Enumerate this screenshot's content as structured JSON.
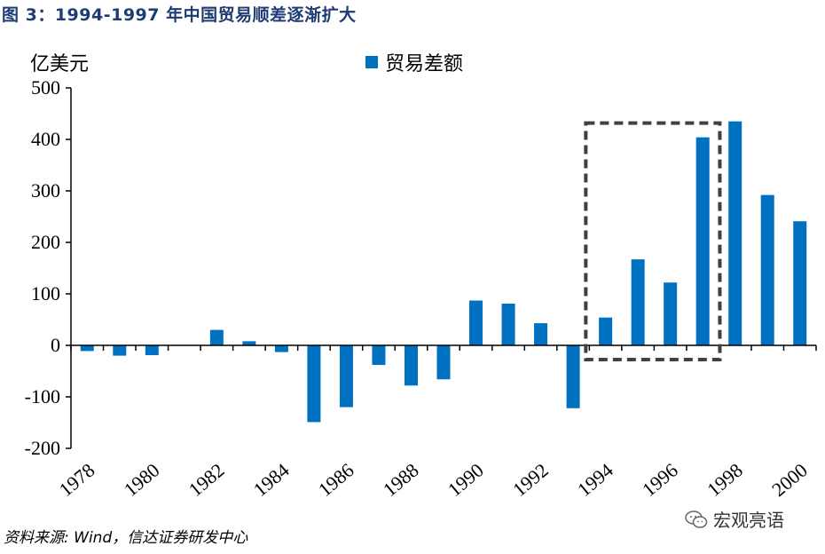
{
  "title": "图 3：1994-1997 年中国贸易顺差逐渐扩大",
  "unit_label": "亿美元",
  "source": "资料来源: Wind，信达证券研发中心",
  "watermark": "宏观亮语",
  "colors": {
    "bar": "#0070c0",
    "highlight_box": "#404040",
    "title": "#1f3b73"
  },
  "chart_data": {
    "type": "bar",
    "categories": [
      "1978",
      "1979",
      "1980",
      "1981",
      "1982",
      "1983",
      "1984",
      "1985",
      "1986",
      "1987",
      "1988",
      "1989",
      "1990",
      "1991",
      "1992",
      "1993",
      "1994",
      "1995",
      "1996",
      "1997",
      "1998",
      "1999",
      "2000"
    ],
    "series": [
      {
        "name": "贸易差额",
        "values": [
          -11,
          -20,
          -19,
          0,
          30,
          8,
          -13,
          -149,
          -120,
          -38,
          -78,
          -66,
          87,
          81,
          43,
          -122,
          54,
          167,
          122,
          404,
          435,
          292,
          241
        ]
      }
    ],
    "x_tick_labels": [
      "1978",
      "1980",
      "1982",
      "1984",
      "1986",
      "1988",
      "1990",
      "1992",
      "1994",
      "1996",
      "1998",
      "2000"
    ],
    "y_ticks": [
      -200,
      -100,
      0,
      100,
      200,
      300,
      400,
      500
    ],
    "ylim": [
      -200,
      500
    ],
    "legend_position": "top-center",
    "highlight_range": [
      "1994",
      "1997"
    ]
  }
}
